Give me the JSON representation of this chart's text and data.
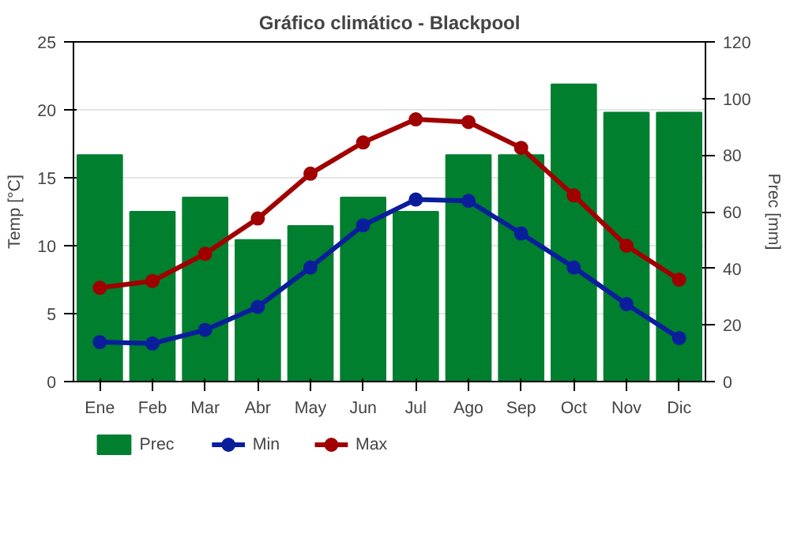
{
  "chart_data": {
    "type": "bar",
    "title": "Gráfico climático - Blackpool",
    "ylabel": "Temp [°C]",
    "y2label": "Prec [mm]",
    "categories": [
      "Ene",
      "Feb",
      "Mar",
      "Abr",
      "May",
      "Jun",
      "Jul",
      "Ago",
      "Sep",
      "Oct",
      "Nov",
      "Dic"
    ],
    "series": [
      {
        "name": "Prec",
        "axis": "y2",
        "color": "#007f2f",
        "values": [
          80,
          60,
          65,
          50,
          55,
          65,
          60,
          80,
          80,
          105,
          95,
          95
        ]
      },
      {
        "name": "Min",
        "type": "line",
        "color": "#0a1e9c",
        "values": [
          2.9,
          2.8,
          3.8,
          5.5,
          8.4,
          11.5,
          13.4,
          13.3,
          10.9,
          8.4,
          5.7,
          3.2
        ]
      },
      {
        "name": "Max",
        "type": "line",
        "color": "#a00000",
        "values": [
          6.9,
          7.4,
          9.4,
          12.0,
          15.3,
          17.6,
          19.3,
          19.1,
          17.2,
          13.7,
          10.0,
          7.5
        ]
      }
    ],
    "ylim": [
      0,
      25
    ],
    "yticks": [
      0,
      5,
      10,
      15,
      20,
      25
    ],
    "y2lim": [
      0,
      120
    ],
    "y2ticks": [
      0,
      20,
      40,
      60,
      80,
      100,
      120
    ],
    "grid": "y",
    "legend": "bottom",
    "marker": "circle",
    "line_style": "solid"
  }
}
